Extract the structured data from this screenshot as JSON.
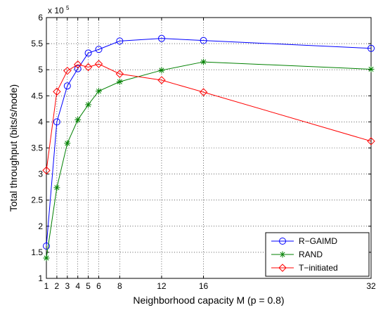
{
  "chart_data": {
    "type": "line",
    "title": "",
    "xlabel": "Neighborhood capacity M (p = 0.8)",
    "ylabel": "Total throughput (bits/s/node)",
    "y_multiplier_label": "x 10",
    "y_multiplier_exponent": "5",
    "x_ticks": [
      1,
      2,
      3,
      4,
      5,
      6,
      8,
      12,
      16,
      32
    ],
    "x_tick_labels": [
      "1",
      "2",
      "3",
      "4",
      "5",
      "6",
      "8",
      "12",
      "16",
      "32"
    ],
    "y_ticks": [
      1,
      1.5,
      2,
      2.5,
      3,
      3.5,
      4,
      4.5,
      5,
      5.5,
      6
    ],
    "y_tick_labels": [
      "1",
      "1.5",
      "2",
      "2.5",
      "3",
      "3.5",
      "4",
      "4.5",
      "5",
      "5.5",
      "6"
    ],
    "ylim": [
      1,
      6
    ],
    "grid": true,
    "legend_position": "bottom-right",
    "series": [
      {
        "name": "R−GAIMD",
        "color": "#0000ff",
        "marker": "circle",
        "x": [
          1,
          2,
          3,
          4,
          5,
          6,
          8,
          12,
          16,
          32
        ],
        "values": [
          1.62,
          4.0,
          4.69,
          5.02,
          5.32,
          5.39,
          5.55,
          5.6,
          5.56,
          5.41
        ]
      },
      {
        "name": "RAND",
        "color": "#008000",
        "marker": "star",
        "x": [
          1,
          2,
          3,
          4,
          5,
          6,
          8,
          12,
          16,
          32
        ],
        "values": [
          1.39,
          2.74,
          3.59,
          4.04,
          4.33,
          4.59,
          4.77,
          4.99,
          5.15,
          5.01
        ]
      },
      {
        "name": "T−initiated",
        "color": "#ff0000",
        "marker": "diamond",
        "x": [
          1,
          2,
          3,
          4,
          5,
          6,
          8,
          12,
          16,
          32
        ],
        "values": [
          3.07,
          4.58,
          4.98,
          5.1,
          5.05,
          5.11,
          4.92,
          4.8,
          4.57,
          3.63
        ]
      }
    ]
  }
}
